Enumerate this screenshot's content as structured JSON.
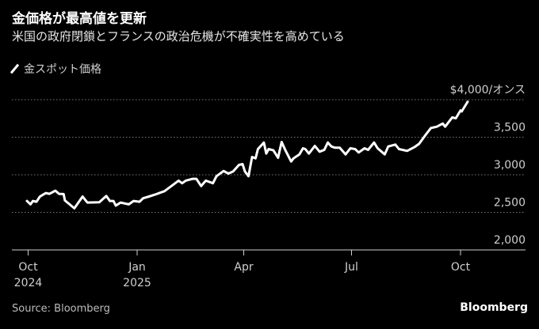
{
  "header": {
    "title": "金価格が最高値を更新",
    "subtitle": "米国の政府閉鎖とフランスの政治危機が不確実性を高めている"
  },
  "footer": {
    "source": "Source: Bloomberg",
    "logo": "Bloomberg"
  },
  "chart_data": {
    "type": "line",
    "title": "金価格が最高値を更新",
    "subtitle": "米国の政府閉鎖とフランスの政治危機が不確実性を高めている",
    "legend": [
      {
        "name": "金スポット価格",
        "color": "#ffffff"
      }
    ],
    "legend_position": "top-left",
    "x_unit": "days since 2024-10-01",
    "xlim": [
      -15,
      437
    ],
    "ylim": [
      2000,
      4000
    ],
    "y_ticks": [
      {
        "value": 4000,
        "label": "$4,000/オンス"
      },
      {
        "value": 3500,
        "label": "3,500"
      },
      {
        "value": 3000,
        "label": "3,000"
      },
      {
        "value": 2500,
        "label": "2,500"
      },
      {
        "value": 2000,
        "label": "2,000"
      }
    ],
    "x_ticks": [
      {
        "value": 0,
        "label": "Oct",
        "sublabel": "2024"
      },
      {
        "value": 92,
        "label": "Jan",
        "sublabel": "2025"
      },
      {
        "value": 182,
        "label": "Apr",
        "sublabel": ""
      },
      {
        "value": 273,
        "label": "Jul",
        "sublabel": ""
      },
      {
        "value": 365,
        "label": "Oct",
        "sublabel": ""
      }
    ],
    "grid": true,
    "series": [
      {
        "name": "金スポット価格",
        "color": "#ffffff",
        "points": [
          [
            -1,
            2652
          ],
          [
            2,
            2606
          ],
          [
            4,
            2652
          ],
          [
            7,
            2641
          ],
          [
            10,
            2711
          ],
          [
            12,
            2729
          ],
          [
            15,
            2757
          ],
          [
            18,
            2746
          ],
          [
            23,
            2788
          ],
          [
            26,
            2746
          ],
          [
            30,
            2743
          ],
          [
            31,
            2659
          ],
          [
            39,
            2554
          ],
          [
            46,
            2711
          ],
          [
            50,
            2631
          ],
          [
            60,
            2634
          ],
          [
            66,
            2718
          ],
          [
            69,
            2652
          ],
          [
            72,
            2652
          ],
          [
            74,
            2589
          ],
          [
            78,
            2631
          ],
          [
            85,
            2606
          ],
          [
            89,
            2652
          ],
          [
            94,
            2641
          ],
          [
            97,
            2687
          ],
          [
            102,
            2711
          ],
          [
            107,
            2736
          ],
          [
            113,
            2771
          ],
          [
            115,
            2781
          ],
          [
            121,
            2851
          ],
          [
            127,
            2922
          ],
          [
            130,
            2887
          ],
          [
            133,
            2922
          ],
          [
            139,
            2946
          ],
          [
            142,
            2946
          ],
          [
            146,
            2851
          ],
          [
            150,
            2922
          ],
          [
            156,
            2887
          ],
          [
            159,
            2981
          ],
          [
            165,
            3051
          ],
          [
            169,
            3016
          ],
          [
            173,
            3044
          ],
          [
            178,
            3132
          ],
          [
            181,
            3142
          ],
          [
            183,
            3044
          ],
          [
            186,
            2981
          ],
          [
            189,
            3237
          ],
          [
            192,
            3219
          ],
          [
            194,
            3342
          ],
          [
            199,
            3430
          ],
          [
            201,
            3282
          ],
          [
            203,
            3342
          ],
          [
            207,
            3325
          ],
          [
            211,
            3226
          ],
          [
            214,
            3437
          ],
          [
            217,
            3332
          ],
          [
            222,
            3177
          ],
          [
            224,
            3219
          ],
          [
            229,
            3272
          ],
          [
            232,
            3353
          ],
          [
            234,
            3342
          ],
          [
            237,
            3282
          ],
          [
            242,
            3384
          ],
          [
            246,
            3307
          ],
          [
            250,
            3332
          ],
          [
            253,
            3430
          ],
          [
            256,
            3377
          ],
          [
            259,
            3360
          ],
          [
            263,
            3360
          ],
          [
            268,
            3272
          ],
          [
            272,
            3353
          ],
          [
            276,
            3342
          ],
          [
            279,
            3297
          ],
          [
            284,
            3353
          ],
          [
            287,
            3332
          ],
          [
            292,
            3430
          ],
          [
            295,
            3353
          ],
          [
            301,
            3272
          ],
          [
            304,
            3377
          ],
          [
            310,
            3402
          ],
          [
            313,
            3342
          ],
          [
            320,
            3318
          ],
          [
            326,
            3367
          ],
          [
            330,
            3412
          ],
          [
            336,
            3542
          ],
          [
            340,
            3622
          ],
          [
            345,
            3640
          ],
          [
            350,
            3682
          ],
          [
            352,
            3640
          ],
          [
            358,
            3763
          ],
          [
            361,
            3752
          ],
          [
            365,
            3857
          ],
          [
            366,
            3843
          ],
          [
            371,
            3973
          ]
        ]
      }
    ]
  }
}
